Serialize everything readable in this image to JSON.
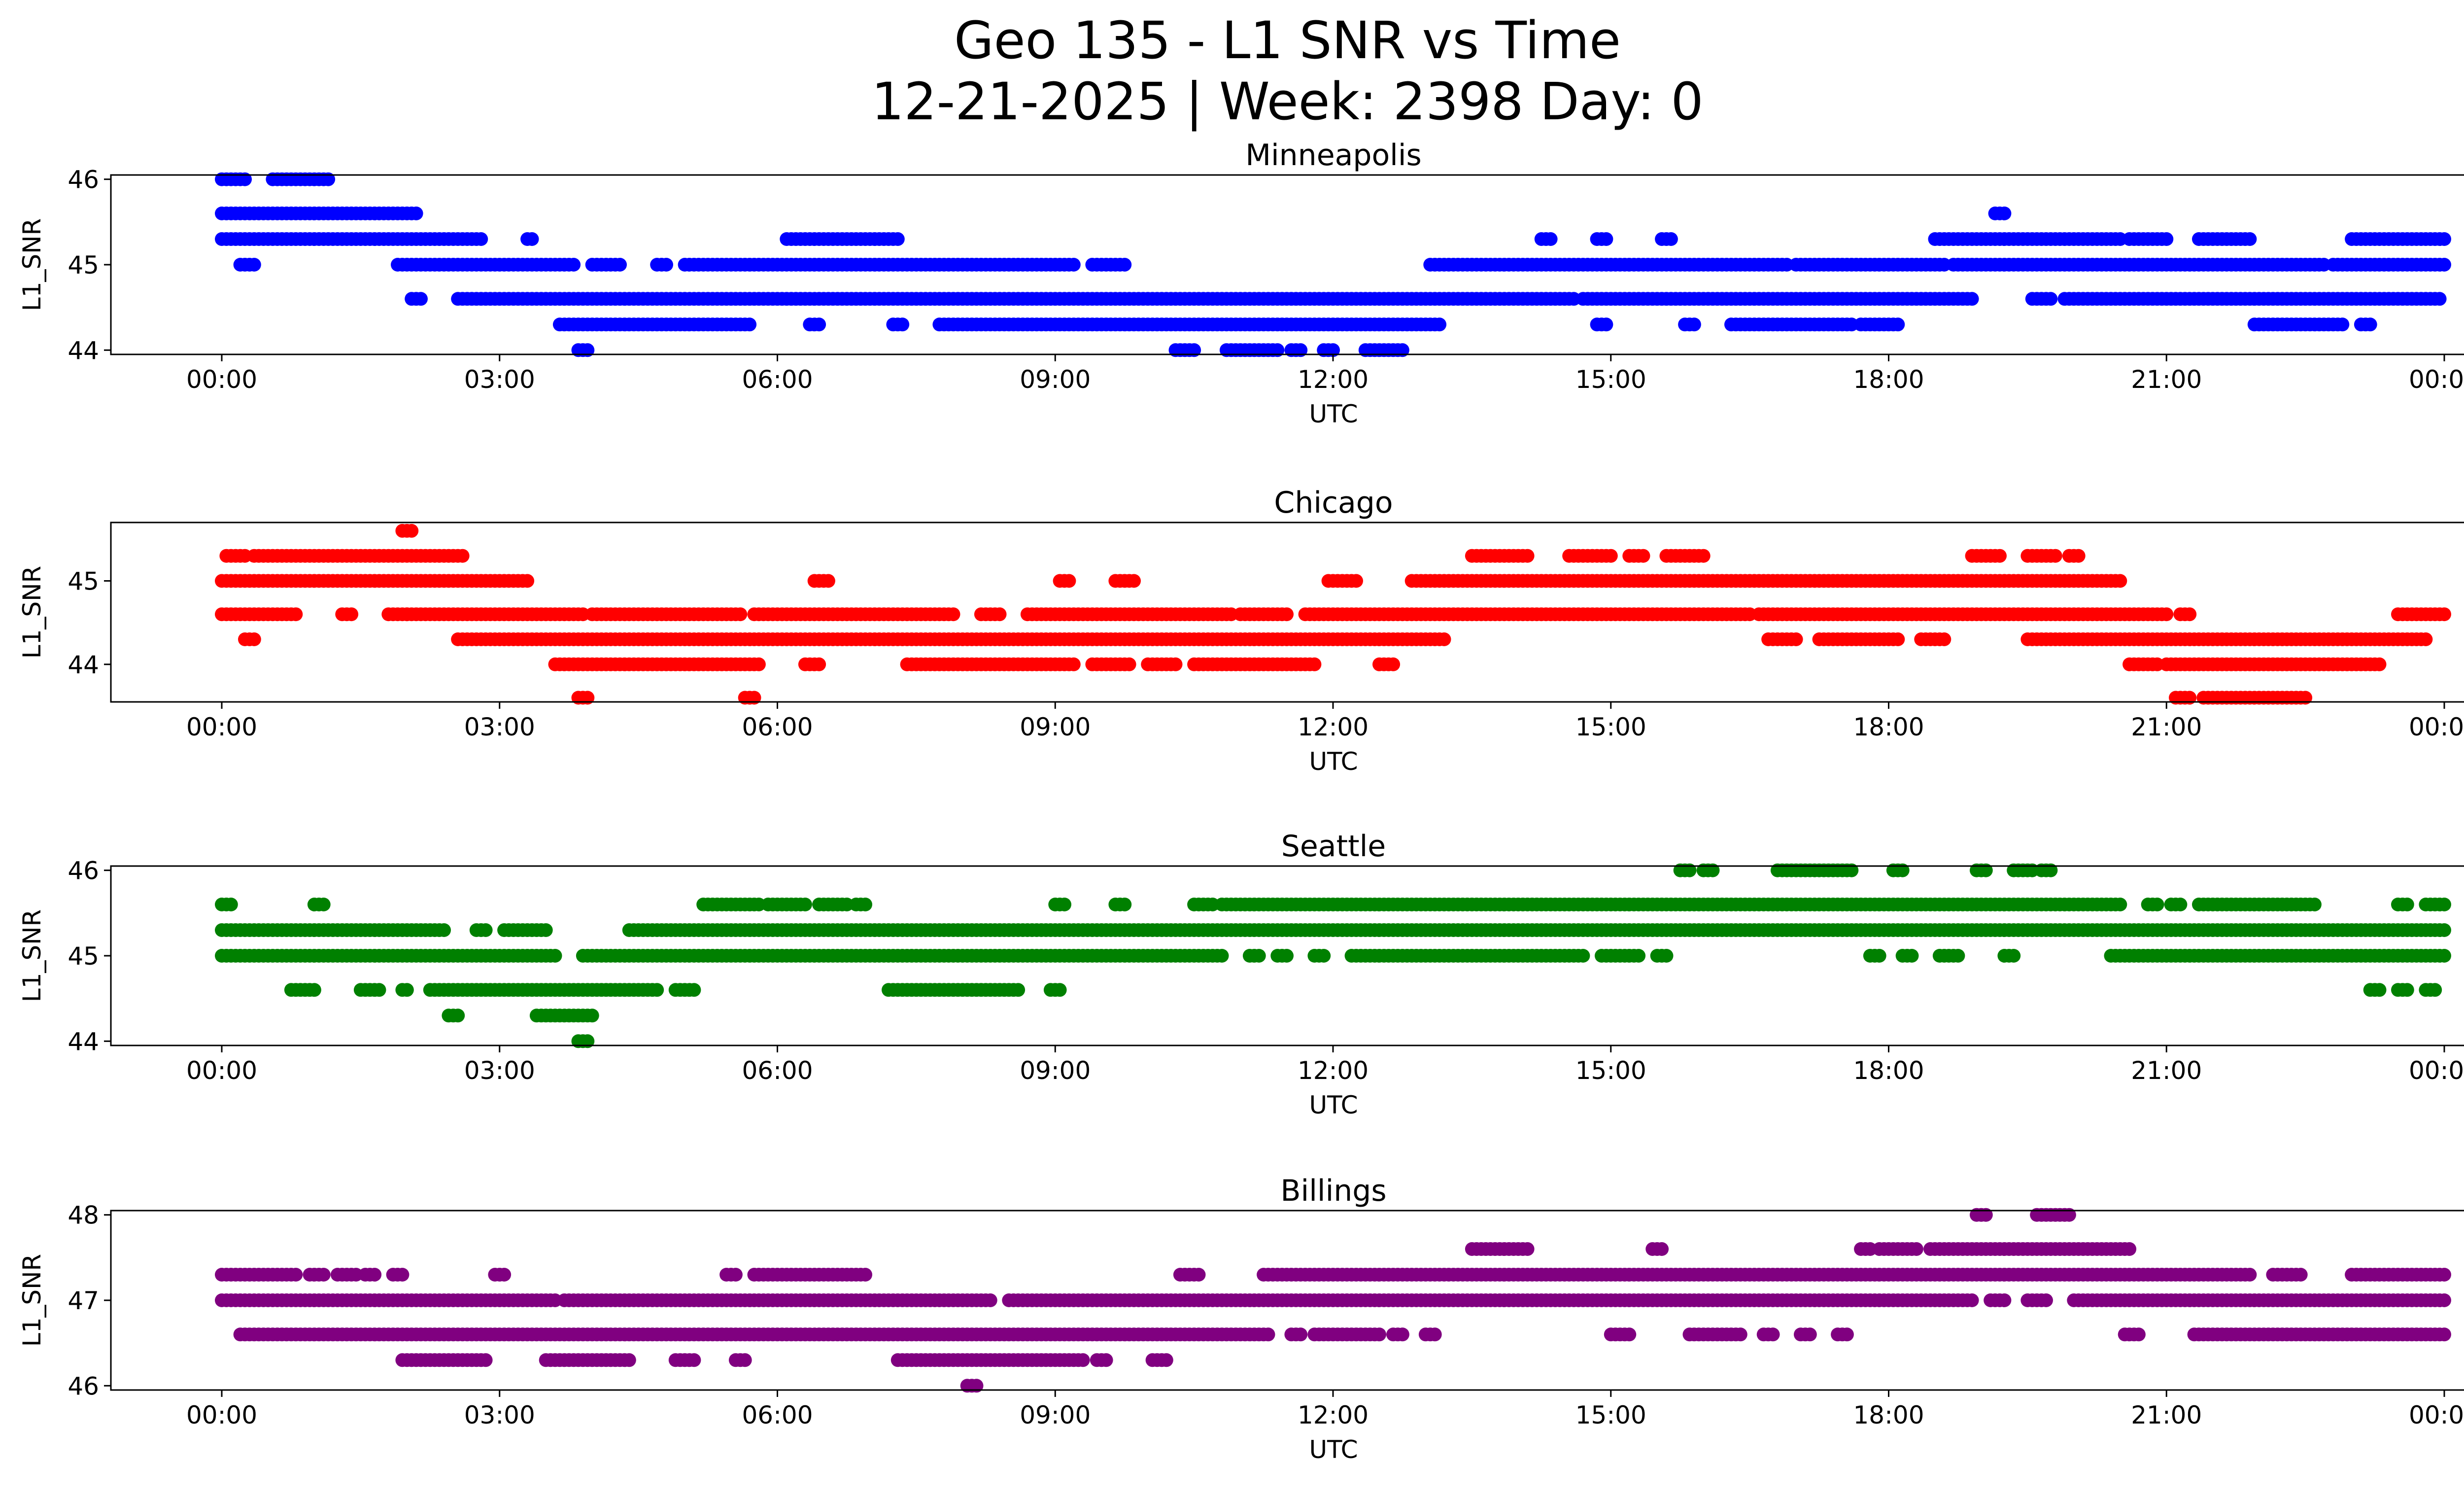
{
  "title": [
    "Geo 135 - L1 SNR vs Time",
    "12-21-2025 | Week: 2398 Day: 0"
  ],
  "chart_data": [
    {
      "type": "scatter",
      "title": "Minneapolis",
      "xlabel": "UTC",
      "ylabel": "L1_SNR",
      "color": "#0000ff",
      "xlim": [
        "00:00",
        "24:00"
      ],
      "ylim": [
        43.95,
        46.05
      ],
      "yticks": [
        "44",
        "45",
        "46"
      ],
      "xticks": [
        "00:00",
        "03:00",
        "06:00",
        "09:00",
        "12:00",
        "15:00",
        "18:00",
        "21:00",
        "00:00"
      ],
      "segments": [
        {
          "y": 46.0,
          "ranges": [
            [
              0.0,
              0.25
            ],
            [
              0.55,
              0.9
            ],
            [
              0.95,
              1.15
            ]
          ]
        },
        {
          "y": 45.6,
          "ranges": [
            [
              0.0,
              2.1
            ],
            [
              19.15,
              19.25
            ]
          ]
        },
        {
          "y": 45.3,
          "ranges": [
            [
              0.0,
              2.8
            ],
            [
              3.3,
              3.35
            ],
            [
              6.1,
              7.3
            ],
            [
              14.25,
              14.35
            ],
            [
              14.85,
              14.95
            ],
            [
              15.55,
              15.65
            ],
            [
              18.5,
              20.5
            ],
            [
              20.6,
              21.0
            ],
            [
              21.35,
              21.9
            ],
            [
              23.0,
              24.0
            ]
          ]
        },
        {
          "y": 45.0,
          "ranges": [
            [
              0.2,
              0.35
            ],
            [
              1.9,
              3.8
            ],
            [
              4.0,
              4.3
            ],
            [
              4.7,
              4.8
            ],
            [
              5.0,
              9.2
            ],
            [
              9.4,
              9.55
            ],
            [
              9.6,
              9.75
            ],
            [
              13.05,
              16.9
            ],
            [
              17.0,
              18.6
            ],
            [
              18.7,
              22.7
            ],
            [
              22.8,
              24.0
            ]
          ]
        },
        {
          "y": 44.6,
          "ranges": [
            [
              2.05,
              2.15
            ],
            [
              2.55,
              14.6
            ],
            [
              14.7,
              18.9
            ],
            [
              19.55,
              19.75
            ],
            [
              19.9,
              20.8
            ],
            [
              20.85,
              23.0
            ],
            [
              23.05,
              23.8
            ],
            [
              23.85,
              23.95
            ]
          ]
        },
        {
          "y": 44.3,
          "ranges": [
            [
              3.65,
              5.7
            ],
            [
              6.35,
              6.45
            ],
            [
              7.25,
              7.35
            ],
            [
              7.75,
              13.15
            ],
            [
              14.85,
              14.95
            ],
            [
              15.8,
              15.9
            ],
            [
              16.3,
              17.6
            ],
            [
              17.7,
              18.1
            ],
            [
              21.95,
              22.9
            ],
            [
              23.1,
              23.2
            ]
          ]
        },
        {
          "y": 44.0,
          "ranges": [
            [
              3.85,
              3.95
            ],
            [
              10.3,
              10.5
            ],
            [
              10.85,
              11.4
            ],
            [
              11.55,
              11.65
            ],
            [
              11.9,
              12.0
            ],
            [
              12.35,
              12.75
            ]
          ]
        }
      ]
    },
    {
      "type": "scatter",
      "title": "Chicago",
      "xlabel": "UTC",
      "ylabel": "L1_SNR",
      "color": "#ff0000",
      "xlim": [
        "00:00",
        "24:00"
      ],
      "ylim": [
        43.55,
        45.7
      ],
      "yticks": [
        "44",
        "45"
      ],
      "xticks": [
        "00:00",
        "03:00",
        "06:00",
        "09:00",
        "12:00",
        "15:00",
        "18:00",
        "21:00",
        "00:00"
      ],
      "segments": [
        {
          "y": 45.6,
          "ranges": [
            [
              1.95,
              2.05
            ]
          ]
        },
        {
          "y": 45.3,
          "ranges": [
            [
              0.05,
              0.25
            ],
            [
              0.35,
              2.6
            ],
            [
              13.5,
              14.1
            ],
            [
              14.55,
              15.0
            ],
            [
              15.2,
              15.35
            ],
            [
              15.6,
              16.0
            ],
            [
              18.9,
              19.2
            ],
            [
              19.5,
              19.8
            ],
            [
              19.95,
              20.05
            ]
          ]
        },
        {
          "y": 45.0,
          "ranges": [
            [
              0.0,
              1.8
            ],
            [
              1.85,
              3.3
            ],
            [
              6.4,
              6.55
            ],
            [
              9.05,
              9.15
            ],
            [
              9.65,
              9.85
            ],
            [
              11.95,
              12.25
            ],
            [
              12.85,
              17.5
            ],
            [
              17.55,
              20.5
            ]
          ]
        },
        {
          "y": 44.6,
          "ranges": [
            [
              0.0,
              0.8
            ],
            [
              1.3,
              1.4
            ],
            [
              1.8,
              2.0
            ],
            [
              2.0,
              3.9
            ],
            [
              4.0,
              5.6
            ],
            [
              5.75,
              7.9
            ],
            [
              8.2,
              8.4
            ],
            [
              8.7,
              10.9
            ],
            [
              11.0,
              11.5
            ],
            [
              11.7,
              16.5
            ],
            [
              16.6,
              21.0
            ],
            [
              21.15,
              21.25
            ],
            [
              23.5,
              24.0
            ]
          ]
        },
        {
          "y": 44.3,
          "ranges": [
            [
              0.25,
              0.35
            ],
            [
              2.55,
              13.2
            ],
            [
              16.7,
              17.0
            ],
            [
              17.25,
              18.1
            ],
            [
              18.35,
              18.6
            ],
            [
              19.5,
              23.8
            ]
          ]
        },
        {
          "y": 44.0,
          "ranges": [
            [
              3.6,
              5.8
            ],
            [
              6.3,
              6.45
            ],
            [
              7.4,
              9.2
            ],
            [
              9.4,
              9.8
            ],
            [
              10.0,
              10.3
            ],
            [
              10.5,
              11.8
            ],
            [
              12.5,
              12.65
            ],
            [
              20.6,
              20.9
            ],
            [
              21.0,
              23.3
            ]
          ]
        },
        {
          "y": 43.6,
          "ranges": [
            [
              3.85,
              3.95
            ],
            [
              5.65,
              5.75
            ],
            [
              21.1,
              21.25
            ],
            [
              21.4,
              22.5
            ]
          ]
        }
      ]
    },
    {
      "type": "scatter",
      "title": "Seattle",
      "xlabel": "UTC",
      "ylabel": "L1_SNR",
      "color": "#008000",
      "xlim": [
        "00:00",
        "24:00"
      ],
      "ylim": [
        43.95,
        46.05
      ],
      "yticks": [
        "44",
        "45",
        "46"
      ],
      "xticks": [
        "00:00",
        "03:00",
        "06:00",
        "09:00",
        "12:00",
        "15:00",
        "18:00",
        "21:00",
        "00:00"
      ],
      "segments": [
        {
          "y": 46.0,
          "ranges": [
            [
              15.75,
              15.85
            ],
            [
              16.0,
              16.1
            ],
            [
              16.8,
              17.6
            ],
            [
              18.05,
              18.15
            ],
            [
              18.95,
              19.05
            ],
            [
              19.35,
              19.55
            ],
            [
              19.65,
              19.75
            ]
          ]
        },
        {
          "y": 45.6,
          "ranges": [
            [
              0.0,
              0.1
            ],
            [
              1.0,
              1.1
            ],
            [
              5.2,
              5.8
            ],
            [
              5.9,
              6.3
            ],
            [
              6.45,
              6.75
            ],
            [
              6.85,
              6.95
            ],
            [
              9.0,
              9.1
            ],
            [
              9.65,
              9.75
            ],
            [
              10.5,
              10.7
            ],
            [
              10.8,
              20.5
            ],
            [
              20.8,
              20.9
            ],
            [
              21.05,
              21.15
            ],
            [
              21.35,
              22.6
            ],
            [
              23.5,
              23.6
            ],
            [
              23.8,
              24.0
            ]
          ]
        },
        {
          "y": 45.3,
          "ranges": [
            [
              0.0,
              2.4
            ],
            [
              2.75,
              2.85
            ],
            [
              3.05,
              3.5
            ],
            [
              4.4,
              24.0
            ]
          ]
        },
        {
          "y": 45.0,
          "ranges": [
            [
              0.0,
              3.6
            ],
            [
              3.9,
              10.8
            ],
            [
              11.1,
              11.2
            ],
            [
              11.4,
              11.5
            ],
            [
              11.8,
              11.9
            ],
            [
              12.2,
              14.7
            ],
            [
              14.9,
              15.3
            ],
            [
              15.5,
              15.6
            ],
            [
              17.8,
              17.9
            ],
            [
              18.15,
              18.25
            ],
            [
              18.55,
              18.75
            ],
            [
              19.25,
              19.35
            ],
            [
              20.4,
              24.0
            ]
          ]
        },
        {
          "y": 44.6,
          "ranges": [
            [
              0.75,
              1.0
            ],
            [
              1.5,
              1.7
            ],
            [
              1.95,
              2.0
            ],
            [
              2.25,
              4.7
            ],
            [
              4.9,
              5.1
            ],
            [
              7.2,
              8.6
            ],
            [
              8.95,
              9.05
            ],
            [
              23.2,
              23.3
            ],
            [
              23.5,
              23.6
            ],
            [
              23.8,
              23.9
            ]
          ]
        },
        {
          "y": 44.3,
          "ranges": [
            [
              2.45,
              2.55
            ],
            [
              3.4,
              4.0
            ]
          ]
        },
        {
          "y": 44.0,
          "ranges": [
            [
              3.85,
              3.95
            ]
          ]
        }
      ]
    },
    {
      "type": "scatter",
      "title": "Billings",
      "xlabel": "UTC",
      "ylabel": "L1_SNR",
      "color": "#800080",
      "xlim": [
        "00:00",
        "24:00"
      ],
      "ylim": [
        45.95,
        48.05
      ],
      "yticks": [
        "46",
        "47",
        "48"
      ],
      "xticks": [
        "00:00",
        "03:00",
        "06:00",
        "09:00",
        "12:00",
        "15:00",
        "18:00",
        "21:00",
        "00:00"
      ],
      "segments": [
        {
          "y": 48.0,
          "ranges": [
            [
              18.95,
              19.05
            ],
            [
              19.6,
              19.95
            ]
          ]
        },
        {
          "y": 47.6,
          "ranges": [
            [
              13.5,
              14.1
            ],
            [
              15.45,
              15.55
            ],
            [
              17.7,
              17.8
            ],
            [
              17.9,
              18.3
            ],
            [
              18.45,
              20.6
            ]
          ]
        },
        {
          "y": 47.3,
          "ranges": [
            [
              0.0,
              0.8
            ],
            [
              0.95,
              1.1
            ],
            [
              1.25,
              1.45
            ],
            [
              1.55,
              1.65
            ],
            [
              1.85,
              1.95
            ],
            [
              2.95,
              3.05
            ],
            [
              5.45,
              5.55
            ],
            [
              5.75,
              6.95
            ],
            [
              10.35,
              10.55
            ],
            [
              11.25,
              21.9
            ],
            [
              22.15,
              22.45
            ],
            [
              23.0,
              24.0
            ]
          ]
        },
        {
          "y": 47.0,
          "ranges": [
            [
              0.0,
              3.6
            ],
            [
              3.7,
              8.3
            ],
            [
              8.5,
              18.9
            ],
            [
              19.1,
              19.25
            ],
            [
              19.5,
              19.7
            ],
            [
              20.0,
              24.0
            ]
          ]
        },
        {
          "y": 46.6,
          "ranges": [
            [
              0.2,
              11.3
            ],
            [
              11.55,
              11.65
            ],
            [
              11.8,
              12.5
            ],
            [
              12.65,
              12.75
            ],
            [
              13.0,
              13.1
            ],
            [
              15.0,
              15.2
            ],
            [
              15.85,
              16.4
            ],
            [
              16.65,
              16.75
            ],
            [
              17.05,
              17.15
            ],
            [
              17.45,
              17.55
            ],
            [
              20.55,
              20.7
            ],
            [
              21.3,
              24.0
            ]
          ]
        },
        {
          "y": 46.3,
          "ranges": [
            [
              1.95,
              2.85
            ],
            [
              3.5,
              4.4
            ],
            [
              4.9,
              5.1
            ],
            [
              5.55,
              5.65
            ],
            [
              7.3,
              9.0
            ],
            [
              9.05,
              9.3
            ],
            [
              9.45,
              9.55
            ],
            [
              10.05,
              10.2
            ]
          ]
        },
        {
          "y": 46.0,
          "ranges": [
            [
              8.05,
              8.15
            ]
          ]
        }
      ]
    }
  ]
}
